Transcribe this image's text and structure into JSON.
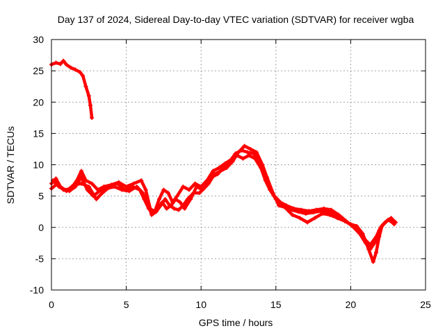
{
  "chart_data": {
    "type": "line",
    "title": "Day 137 of 2024, Sidereal Day-to-day VTEC variation (SDTVAR) for receiver wgba",
    "xlabel": "GPS time / hours",
    "ylabel": "SDTVAR / TECUs",
    "xlim": [
      0,
      25
    ],
    "ylim": [
      -10,
      30
    ],
    "xticks": [
      "0",
      "5",
      "10",
      "15",
      "20",
      "25"
    ],
    "yticks": [
      "-10",
      "-5",
      "0",
      "5",
      "10",
      "15",
      "20",
      "25",
      "30"
    ],
    "grid": true,
    "color": "#ff0000",
    "series": [
      {
        "name": "segment-early",
        "points": [
          [
            0,
            26.0
          ],
          [
            0.3,
            26.3
          ],
          [
            0.6,
            26.1
          ],
          [
            0.8,
            26.6
          ],
          [
            1.0,
            26.0
          ],
          [
            1.3,
            25.5
          ],
          [
            1.6,
            25.2
          ],
          [
            1.9,
            24.8
          ],
          [
            2.1,
            24.2
          ],
          [
            2.3,
            22.5
          ],
          [
            2.5,
            21.0
          ],
          [
            2.6,
            19.5
          ],
          [
            2.7,
            17.5
          ]
        ]
      },
      {
        "name": "track-a",
        "points": [
          [
            0,
            7.0
          ],
          [
            0.3,
            7.8
          ],
          [
            0.6,
            6.5
          ],
          [
            0.9,
            6.0
          ],
          [
            1.3,
            6.2
          ],
          [
            1.7,
            7.5
          ],
          [
            2.0,
            9.0
          ],
          [
            2.3,
            7.5
          ],
          [
            2.7,
            7.0
          ],
          [
            3.1,
            6.0
          ],
          [
            3.5,
            6.5
          ],
          [
            4.0,
            6.8
          ],
          [
            4.5,
            7.2
          ],
          [
            5.0,
            6.5
          ],
          [
            5.5,
            7.0
          ],
          [
            6.0,
            7.5
          ],
          [
            6.3,
            6.0
          ],
          [
            6.6,
            3.0
          ],
          [
            6.9,
            2.5
          ],
          [
            7.2,
            4.5
          ],
          [
            7.5,
            6.0
          ],
          [
            7.8,
            5.5
          ],
          [
            8.1,
            4.0
          ],
          [
            8.4,
            5.0
          ],
          [
            8.8,
            6.5
          ],
          [
            9.2,
            6.0
          ],
          [
            9.6,
            7.0
          ],
          [
            10.0,
            6.5
          ],
          [
            10.4,
            7.5
          ],
          [
            10.8,
            9.0
          ],
          [
            11.2,
            9.5
          ],
          [
            11.6,
            10.2
          ],
          [
            12.0,
            10.8
          ],
          [
            12.4,
            11.5
          ],
          [
            12.8,
            11.0
          ],
          [
            13.2,
            11.5
          ],
          [
            13.6,
            11.0
          ],
          [
            14.0,
            9.5
          ],
          [
            14.3,
            7.5
          ],
          [
            14.6,
            6.0
          ],
          [
            15.0,
            4.5
          ],
          [
            15.5,
            3.5
          ],
          [
            16.0,
            2.8
          ],
          [
            16.5,
            2.5
          ],
          [
            17.0,
            2.2
          ],
          [
            17.5,
            2.4
          ],
          [
            18.0,
            2.6
          ],
          [
            18.5,
            2.5
          ],
          [
            19.0,
            2.0
          ],
          [
            19.5,
            1.2
          ],
          [
            20.0,
            0.5
          ],
          [
            20.4,
            0.2
          ],
          [
            20.8,
            -1.0
          ],
          [
            21.2,
            -3.5
          ],
          [
            21.5,
            -5.5
          ],
          [
            21.7,
            -4.0
          ],
          [
            21.9,
            -1.5
          ],
          [
            22.1,
            0.3
          ],
          [
            22.4,
            1.0
          ],
          [
            22.7,
            1.5
          ],
          [
            23.0,
            0.8
          ]
        ]
      },
      {
        "name": "track-b",
        "points": [
          [
            0,
            6.2
          ],
          [
            0.4,
            7.0
          ],
          [
            0.8,
            6.0
          ],
          [
            1.2,
            5.8
          ],
          [
            1.6,
            6.5
          ],
          [
            2.0,
            8.0
          ],
          [
            2.4,
            6.0
          ],
          [
            2.8,
            5.0
          ],
          [
            3.2,
            5.8
          ],
          [
            3.7,
            6.2
          ],
          [
            4.2,
            6.5
          ],
          [
            4.7,
            6.0
          ],
          [
            5.2,
            5.8
          ],
          [
            5.7,
            6.5
          ],
          [
            6.1,
            5.5
          ],
          [
            6.4,
            4.0
          ],
          [
            6.7,
            2.0
          ],
          [
            7.0,
            2.5
          ],
          [
            7.3,
            3.5
          ],
          [
            7.6,
            4.5
          ],
          [
            7.9,
            3.5
          ],
          [
            8.2,
            3.0
          ],
          [
            8.5,
            2.8
          ],
          [
            8.8,
            3.5
          ],
          [
            9.1,
            4.5
          ],
          [
            9.5,
            5.5
          ],
          [
            9.9,
            5.5
          ],
          [
            10.3,
            6.5
          ],
          [
            10.7,
            8.0
          ],
          [
            11.1,
            8.5
          ],
          [
            11.5,
            9.5
          ],
          [
            11.9,
            10.5
          ],
          [
            12.3,
            11.8
          ],
          [
            12.7,
            12.3
          ],
          [
            13.1,
            12.0
          ],
          [
            13.5,
            11.8
          ],
          [
            13.9,
            10.5
          ],
          [
            14.2,
            8.5
          ],
          [
            14.5,
            6.8
          ],
          [
            14.9,
            5.0
          ],
          [
            15.3,
            4.0
          ],
          [
            15.7,
            3.5
          ],
          [
            16.2,
            3.0
          ],
          [
            16.7,
            2.8
          ],
          [
            17.2,
            2.6
          ],
          [
            17.7,
            2.8
          ],
          [
            18.2,
            3.0
          ],
          [
            18.7,
            2.8
          ],
          [
            19.2,
            2.0
          ],
          [
            19.7,
            1.0
          ],
          [
            20.2,
            0.0
          ],
          [
            20.6,
            -1.0
          ],
          [
            21.0,
            -2.5
          ],
          [
            21.3,
            -3.5
          ],
          [
            21.6,
            -2.5
          ],
          [
            21.9,
            -0.5
          ],
          [
            22.2,
            0.5
          ],
          [
            22.5,
            1.2
          ],
          [
            22.9,
            0.6
          ]
        ]
      },
      {
        "name": "track-c",
        "points": [
          [
            0.1,
            7.5
          ],
          [
            0.5,
            6.5
          ],
          [
            1.0,
            5.8
          ],
          [
            1.5,
            6.8
          ],
          [
            2.0,
            7.0
          ],
          [
            2.5,
            6.5
          ],
          [
            3.0,
            4.5
          ],
          [
            3.4,
            5.5
          ],
          [
            3.9,
            6.5
          ],
          [
            4.4,
            7.0
          ],
          [
            4.9,
            6.0
          ],
          [
            5.4,
            6.5
          ],
          [
            5.9,
            6.0
          ],
          [
            6.2,
            4.5
          ],
          [
            6.5,
            3.0
          ],
          [
            6.8,
            2.2
          ],
          [
            7.1,
            3.0
          ],
          [
            7.4,
            4.0
          ],
          [
            7.7,
            3.0
          ],
          [
            8.0,
            3.5
          ],
          [
            8.3,
            4.5
          ],
          [
            8.6,
            4.0
          ],
          [
            8.9,
            3.0
          ],
          [
            9.3,
            4.5
          ],
          [
            9.7,
            6.5
          ],
          [
            10.1,
            6.0
          ],
          [
            10.5,
            7.0
          ],
          [
            10.9,
            8.5
          ],
          [
            11.3,
            9.0
          ],
          [
            11.7,
            9.5
          ],
          [
            12.1,
            10.5
          ],
          [
            12.5,
            12.0
          ],
          [
            12.9,
            13.0
          ],
          [
            13.3,
            12.5
          ],
          [
            13.7,
            12.0
          ],
          [
            14.1,
            10.0
          ],
          [
            14.4,
            8.0
          ],
          [
            14.8,
            5.5
          ],
          [
            15.2,
            3.5
          ],
          [
            15.6,
            3.2
          ],
          [
            16.1,
            2.0
          ],
          [
            16.6,
            1.5
          ],
          [
            17.1,
            0.8
          ],
          [
            17.6,
            1.5
          ],
          [
            18.1,
            2.2
          ],
          [
            18.6,
            2.0
          ],
          [
            19.1,
            1.5
          ],
          [
            19.6,
            1.0
          ],
          [
            20.1,
            0.3
          ],
          [
            20.5,
            -0.5
          ],
          [
            20.9,
            -1.8
          ],
          [
            21.3,
            -2.8
          ],
          [
            21.7,
            -1.5
          ],
          [
            22.0,
            0.0
          ],
          [
            22.3,
            0.8
          ],
          [
            22.6,
            1.3
          ],
          [
            22.9,
            0.5
          ]
        ]
      }
    ]
  }
}
